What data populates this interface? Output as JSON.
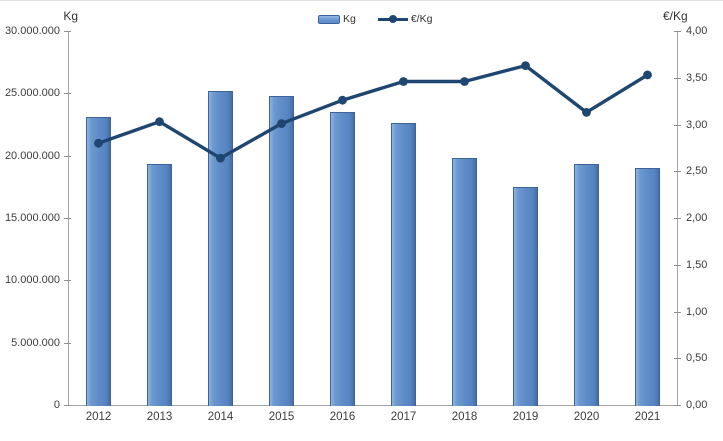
{
  "chart": {
    "legend": {
      "bar_label": "Kg",
      "line_label": "€/Kg"
    }
  },
  "chart_data": {
    "type": "combo-bar-line",
    "title": "",
    "categories": [
      "2012",
      "2013",
      "2014",
      "2015",
      "2016",
      "2017",
      "2018",
      "2019",
      "2020",
      "2021"
    ],
    "series": [
      {
        "name": "Kg",
        "type": "bar",
        "axis": "left",
        "values": [
          23100000,
          19300000,
          25200000,
          24800000,
          23500000,
          22600000,
          19800000,
          17500000,
          19300000,
          19000000
        ]
      },
      {
        "name": "€/Kg",
        "type": "line",
        "axis": "right",
        "values": [
          2.8,
          3.03,
          2.64,
          3.01,
          3.26,
          3.46,
          3.46,
          3.63,
          3.13,
          3.53
        ]
      }
    ],
    "left_axis": {
      "label": "Kg",
      "min": 0,
      "max": 30000000,
      "step": 5000000,
      "tick_labels": [
        "30.000.000",
        "25.000.000",
        "20.000.000",
        "15.000.000",
        "10.000.000",
        "5.000.000",
        "0"
      ]
    },
    "right_axis": {
      "label": "€/Kg",
      "min": 0,
      "max": 4,
      "step": 0.5,
      "tick_labels": [
        "4,00",
        "3,50",
        "3,00",
        "2,50",
        "2,00",
        "1,50",
        "1,00",
        "0,50",
        "0,00"
      ]
    },
    "legend_position": "top-center",
    "grid": false,
    "colors": {
      "bar_fill": "#5F8CC8",
      "bar_border": "#3E639B",
      "line": "#1F4670",
      "axis": "#A3A3A3",
      "text": "#3C3C3C"
    }
  }
}
